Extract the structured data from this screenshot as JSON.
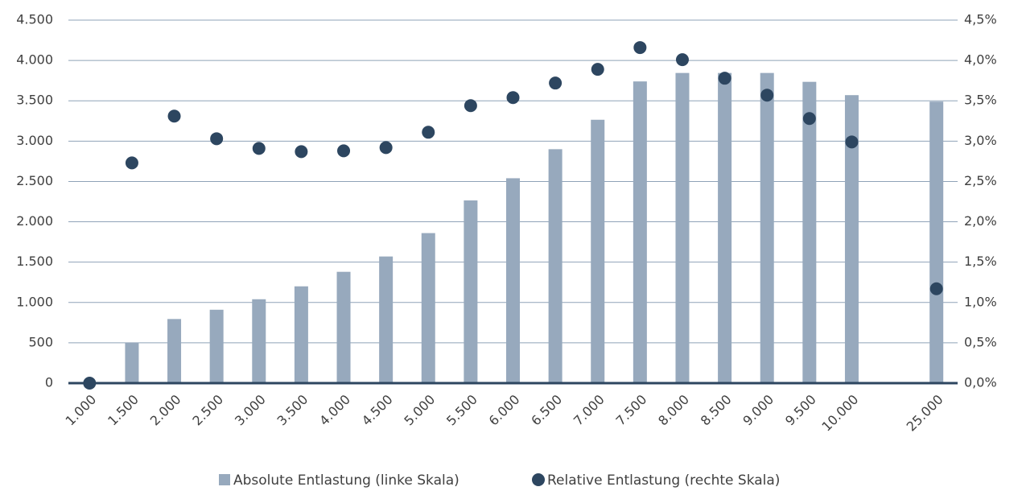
{
  "chart_data": {
    "type": "combo",
    "categories": [
      "1.000",
      "1.500",
      "2.000",
      "2.500",
      "3.000",
      "3.500",
      "4.000",
      "4.500",
      "5.000",
      "5.500",
      "6.000",
      "6.500",
      "7.000",
      "7.500",
      "8.000",
      "8.500",
      "9.000",
      "9.500",
      "10.000",
      null,
      "25.000"
    ],
    "series": [
      {
        "name": "Absolute Entlastung (linke Skala)",
        "type": "bar",
        "axis": "y",
        "color": "#97a9bd",
        "values": [
          0,
          500,
          795,
          910,
          1040,
          1200,
          1380,
          1570,
          1860,
          2265,
          2540,
          2900,
          3265,
          3740,
          3845,
          3845,
          3845,
          3735,
          3570,
          null,
          3490
        ]
      },
      {
        "name": "Relative Entlastung (rechte Skala)",
        "type": "scatter",
        "axis": "y2",
        "color": "#2d4660",
        "values": [
          0,
          2.73,
          3.31,
          3.03,
          2.91,
          2.87,
          2.88,
          2.92,
          3.11,
          3.44,
          3.54,
          3.72,
          3.89,
          4.16,
          4.01,
          3.78,
          3.57,
          3.28,
          2.99,
          null,
          1.17
        ]
      }
    ],
    "ylim": [
      0,
      4500
    ],
    "yticks": [
      0,
      500,
      {
        "value": 1000,
        "label": "1.000"
      },
      {
        "value": 1500,
        "label": "1.500"
      },
      {
        "value": 2000,
        "label": "2.000"
      },
      {
        "value": 2500,
        "label": "2.500"
      },
      {
        "value": 3000,
        "label": "3.000"
      },
      {
        "value": 3500,
        "label": "3.500"
      },
      {
        "value": 4000,
        "label": "4.000"
      },
      {
        "value": 4500,
        "label": "4.500"
      }
    ],
    "y2lim": [
      0,
      4.5
    ],
    "y2ticks": [
      {
        "value": 0,
        "label": "0,0%"
      },
      {
        "value": 0.5,
        "label": "0,5%"
      },
      {
        "value": 1,
        "label": "1,0%"
      },
      {
        "value": 1.5,
        "label": "1,5%"
      },
      {
        "value": 2,
        "label": "2,0%"
      },
      {
        "value": 2.5,
        "label": "2,5%"
      },
      {
        "value": 3,
        "label": "3,0%"
      },
      {
        "value": 3.5,
        "label": "3,5%"
      },
      {
        "value": 4,
        "label": "4,0%"
      },
      {
        "value": 4.5,
        "label": "4,5%"
      }
    ],
    "grid": true,
    "legend": "bottom"
  }
}
